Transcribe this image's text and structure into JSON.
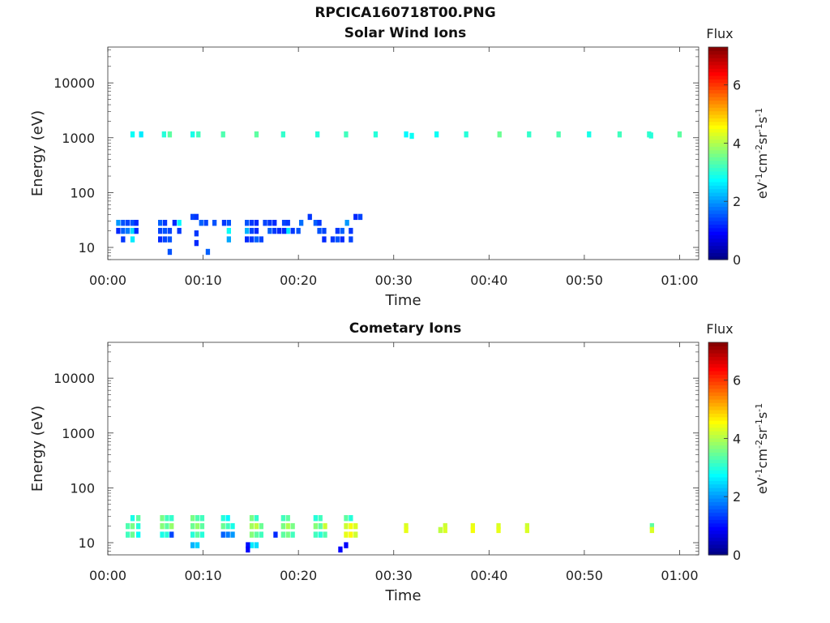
{
  "title": "RPCICA160718T00.PNG",
  "chart_data": [
    {
      "type": "heatmap",
      "title": "Solar Wind Ions",
      "xlabel": "Time",
      "ylabel": "Energy (eV)",
      "y_scale": "log",
      "xlim_minutes": [
        0,
        62
      ],
      "ylim": [
        6,
        45000
      ],
      "x_ticks": [
        "00:00",
        "00:10",
        "00:20",
        "00:30",
        "00:40",
        "00:50",
        "01:00"
      ],
      "y_ticks": [
        "10",
        "100",
        "1000",
        "10000"
      ],
      "colorbar": {
        "title": "Flux",
        "label": "eV-1cm-2sr-1s-1",
        "range": [
          0,
          7.3
        ],
        "ticks": [
          "0",
          "2",
          "4",
          "6"
        ],
        "colormap": "jet"
      },
      "band_note": "1000 eV beam across 00:02–01:00",
      "cells": [
        [
          1.1,
          28,
          2.0
        ],
        [
          1.6,
          28,
          1.5
        ],
        [
          2.1,
          28,
          1.4
        ],
        [
          2.6,
          28,
          1.5
        ],
        [
          3.0,
          28,
          1.2
        ],
        [
          1.1,
          20,
          1.2
        ],
        [
          1.6,
          20,
          1.6
        ],
        [
          2.1,
          20,
          1.8
        ],
        [
          2.6,
          20,
          2.5
        ],
        [
          3.0,
          20,
          1.2
        ],
        [
          2.6,
          14,
          2.6
        ],
        [
          1.6,
          14,
          1.3
        ],
        [
          5.5,
          28,
          1.6
        ],
        [
          6.0,
          28,
          1.3
        ],
        [
          5.5,
          20,
          1.4
        ],
        [
          6.0,
          20,
          1.5
        ],
        [
          6.5,
          20,
          1.4
        ],
        [
          5.5,
          14,
          1.2
        ],
        [
          6.0,
          14,
          1.4
        ],
        [
          6.5,
          14,
          1.5
        ],
        [
          7.0,
          28,
          1.2
        ],
        [
          7.5,
          28,
          2.7
        ],
        [
          7.5,
          20,
          1.3
        ],
        [
          8.9,
          36,
          1.4
        ],
        [
          9.3,
          36,
          1.3
        ],
        [
          9.8,
          28,
          1.6
        ],
        [
          10.3,
          28,
          1.4
        ],
        [
          9.3,
          18,
          1.3
        ],
        [
          9.3,
          12,
          1.2
        ],
        [
          11.2,
          28,
          1.5
        ],
        [
          12.2,
          28,
          1.3
        ],
        [
          12.7,
          28,
          1.5
        ],
        [
          12.7,
          20,
          2.8
        ],
        [
          12.7,
          14,
          2.1
        ],
        [
          14.6,
          28,
          1.5
        ],
        [
          15.1,
          28,
          1.3
        ],
        [
          15.6,
          28,
          1.2
        ],
        [
          14.6,
          20,
          2.2
        ],
        [
          15.1,
          20,
          1.4
        ],
        [
          15.6,
          20,
          1.2
        ],
        [
          14.6,
          14,
          1.2
        ],
        [
          15.1,
          14,
          1.3
        ],
        [
          15.6,
          14,
          1.6
        ],
        [
          16.1,
          14,
          1.4
        ],
        [
          16.5,
          28,
          1.4
        ],
        [
          17.0,
          28,
          1.3
        ],
        [
          17.5,
          28,
          1.2
        ],
        [
          17.0,
          20,
          1.6
        ],
        [
          17.5,
          20,
          1.3
        ],
        [
          18.0,
          20,
          1.2
        ],
        [
          18.5,
          28,
          1.4
        ],
        [
          18.9,
          28,
          1.3
        ],
        [
          18.9,
          20,
          2.6
        ],
        [
          18.5,
          20,
          1.2
        ],
        [
          19.4,
          20,
          1.3
        ],
        [
          20.0,
          20,
          1.5
        ],
        [
          20.3,
          28,
          1.7
        ],
        [
          21.2,
          36,
          1.3
        ],
        [
          21.8,
          28,
          1.6
        ],
        [
          22.2,
          28,
          1.3
        ],
        [
          22.7,
          20,
          1.4
        ],
        [
          22.2,
          20,
          1.5
        ],
        [
          22.7,
          14,
          1.2
        ],
        [
          23.6,
          14,
          1.3
        ],
        [
          24.1,
          14,
          1.5
        ],
        [
          24.6,
          14,
          1.2
        ],
        [
          24.1,
          20,
          1.3
        ],
        [
          24.6,
          20,
          1.6
        ],
        [
          25.1,
          28,
          2.0
        ],
        [
          25.5,
          14,
          1.4
        ],
        [
          25.5,
          20,
          1.3
        ],
        [
          26.0,
          36,
          1.2
        ],
        [
          26.5,
          36,
          1.4
        ],
        [
          6.5,
          8.3,
          1.5
        ],
        [
          10.5,
          8.3,
          1.6
        ]
      ],
      "beam_cells": [
        [
          2.6,
          1150,
          2.8
        ],
        [
          3.5,
          1150,
          2.6
        ],
        [
          5.9,
          1150,
          3.0
        ],
        [
          6.5,
          1150,
          3.4
        ],
        [
          8.9,
          1150,
          2.9
        ],
        [
          9.5,
          1150,
          3.2
        ],
        [
          12.1,
          1150,
          3.3
        ],
        [
          15.6,
          1150,
          3.4
        ],
        [
          18.4,
          1150,
          3.1
        ],
        [
          22.0,
          1150,
          3.0
        ],
        [
          25.0,
          1150,
          3.2
        ],
        [
          28.1,
          1150,
          3.0
        ],
        [
          31.3,
          1150,
          2.7
        ],
        [
          31.9,
          1080,
          2.8
        ],
        [
          34.5,
          1150,
          2.8
        ],
        [
          37.6,
          1150,
          3.0
        ],
        [
          41.1,
          1150,
          3.5
        ],
        [
          44.2,
          1150,
          3.1
        ],
        [
          47.3,
          1150,
          3.3
        ],
        [
          50.5,
          1150,
          2.9
        ],
        [
          53.7,
          1150,
          3.2
        ],
        [
          56.8,
          1150,
          3.1
        ],
        [
          57.0,
          1100,
          3.0
        ],
        [
          60.0,
          1150,
          3.4
        ]
      ]
    },
    {
      "type": "heatmap",
      "title": "Cometary Ions",
      "xlabel": "Time",
      "ylabel": "Energy (eV)",
      "y_scale": "log",
      "xlim_minutes": [
        0,
        62
      ],
      "ylim": [
        6,
        45000
      ],
      "x_ticks": [
        "00:00",
        "00:10",
        "00:20",
        "00:30",
        "00:40",
        "00:50",
        "01:00"
      ],
      "y_ticks": [
        "10",
        "100",
        "1000",
        "10000"
      ],
      "colorbar": {
        "title": "Flux",
        "label": "eV-1cm-2sr-1s-1",
        "range": [
          0,
          7.3
        ],
        "ticks": [
          "0",
          "2",
          "4",
          "6"
        ],
        "colormap": "jet"
      },
      "cells": [
        [
          2.1,
          20,
          3.3
        ],
        [
          2.6,
          20,
          3.6
        ],
        [
          3.2,
          20,
          3.0
        ],
        [
          2.1,
          14,
          3.2
        ],
        [
          2.6,
          14,
          3.5
        ],
        [
          3.2,
          14,
          2.8
        ],
        [
          2.6,
          28,
          2.9
        ],
        [
          3.2,
          28,
          3.4
        ],
        [
          5.7,
          28,
          3.6
        ],
        [
          6.2,
          28,
          3.2
        ],
        [
          6.7,
          28,
          3.1
        ],
        [
          5.7,
          20,
          3.7
        ],
        [
          6.2,
          20,
          3.4
        ],
        [
          6.7,
          20,
          3.8
        ],
        [
          5.7,
          14,
          2.9
        ],
        [
          6.2,
          14,
          3.0
        ],
        [
          6.7,
          14,
          1.4
        ],
        [
          8.9,
          28,
          3.6
        ],
        [
          9.4,
          28,
          3.3
        ],
        [
          9.9,
          28,
          3.2
        ],
        [
          8.9,
          20,
          3.5
        ],
        [
          9.4,
          20,
          3.8
        ],
        [
          9.9,
          20,
          3.4
        ],
        [
          8.9,
          14,
          3.0
        ],
        [
          9.4,
          14,
          3.4
        ],
        [
          9.9,
          14,
          3.0
        ],
        [
          8.9,
          9,
          2.2
        ],
        [
          9.4,
          9,
          2.4
        ],
        [
          12.1,
          28,
          3.0
        ],
        [
          12.6,
          28,
          2.7
        ],
        [
          12.1,
          20,
          3.5
        ],
        [
          12.6,
          20,
          3.2
        ],
        [
          13.1,
          20,
          2.9
        ],
        [
          12.1,
          14,
          1.6
        ],
        [
          12.6,
          14,
          1.8
        ],
        [
          13.1,
          14,
          2.0
        ],
        [
          15.1,
          28,
          3.6
        ],
        [
          15.6,
          28,
          3.1
        ],
        [
          15.1,
          20,
          3.9
        ],
        [
          15.6,
          20,
          4.1
        ],
        [
          16.1,
          20,
          3.5
        ],
        [
          15.1,
          14,
          3.7
        ],
        [
          15.6,
          14,
          3.4
        ],
        [
          16.1,
          14,
          3.2
        ],
        [
          15.1,
          9,
          2.6
        ],
        [
          15.6,
          9,
          2.5
        ],
        [
          17.6,
          14,
          1.2
        ],
        [
          18.4,
          28,
          3.2
        ],
        [
          18.9,
          28,
          3.4
        ],
        [
          18.4,
          20,
          3.6
        ],
        [
          18.9,
          20,
          4.0
        ],
        [
          19.4,
          20,
          3.6
        ],
        [
          18.4,
          14,
          3.4
        ],
        [
          18.9,
          14,
          3.6
        ],
        [
          19.4,
          14,
          3.2
        ],
        [
          21.8,
          28,
          3.0
        ],
        [
          22.3,
          28,
          3.2
        ],
        [
          21.8,
          20,
          3.7
        ],
        [
          22.3,
          20,
          3.4
        ],
        [
          22.8,
          20,
          4.2
        ],
        [
          21.8,
          14,
          3.2
        ],
        [
          22.3,
          14,
          3.0
        ],
        [
          22.8,
          14,
          3.3
        ],
        [
          25.0,
          28,
          3.4
        ],
        [
          25.5,
          28,
          3.0
        ],
        [
          25.0,
          20,
          4.2
        ],
        [
          25.5,
          20,
          4.5
        ],
        [
          26.0,
          20,
          4.3
        ],
        [
          25.0,
          14,
          4.4
        ],
        [
          25.5,
          14,
          4.6
        ],
        [
          26.0,
          14,
          4.2
        ],
        [
          31.3,
          20,
          4.3
        ],
        [
          31.3,
          17,
          4.4
        ],
        [
          34.9,
          17,
          4.1
        ],
        [
          35.4,
          20,
          4.2
        ],
        [
          35.4,
          17,
          4.3
        ],
        [
          38.3,
          20,
          4.4
        ],
        [
          38.3,
          17,
          4.5
        ],
        [
          41.0,
          20,
          4.3
        ],
        [
          41.0,
          17,
          4.4
        ],
        [
          44.0,
          20,
          4.2
        ],
        [
          44.0,
          17,
          4.3
        ],
        [
          57.1,
          20,
          3.4
        ],
        [
          57.1,
          17,
          4.3
        ],
        [
          14.7,
          9,
          1.0
        ],
        [
          14.7,
          7.5,
          0.9
        ],
        [
          24.4,
          7.5,
          0.9
        ],
        [
          25.0,
          9,
          0.9
        ]
      ]
    }
  ]
}
